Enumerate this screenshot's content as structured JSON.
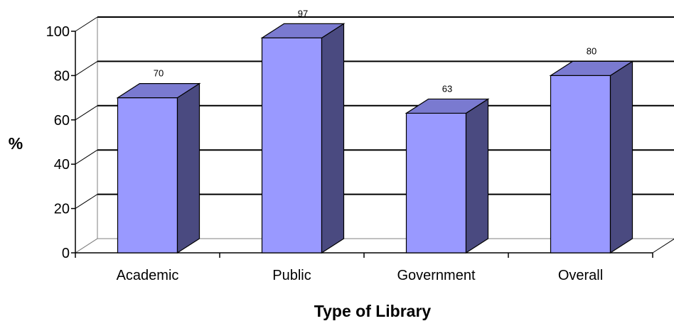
{
  "chart_data": {
    "type": "bar",
    "categories": [
      "Academic",
      "Public",
      "Government",
      "Overall"
    ],
    "values": [
      70,
      97,
      63,
      80
    ],
    "title": "",
    "xlabel": "Type of Library",
    "ylabel": "%",
    "ylim": [
      0,
      100
    ],
    "yticks": [
      0,
      20,
      40,
      60,
      80,
      100
    ],
    "grid": true,
    "legend": "none",
    "style": "3d-column",
    "colors": {
      "bar_front": "#9999ff",
      "bar_side": "#4a4a80",
      "bar_top": "#7a7ad0",
      "grid": "#000000",
      "axis": "#000000"
    }
  }
}
